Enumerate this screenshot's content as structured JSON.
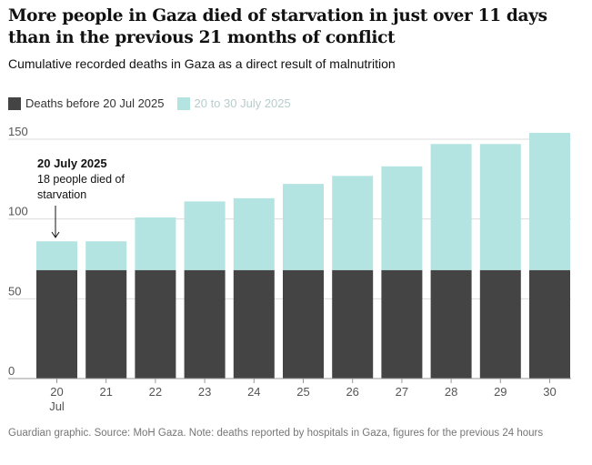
{
  "header": {
    "title": "More people in Gaza died of starvation in just over 11 days than in the previous 21 months of conflict",
    "subtitle": "Cumulative recorded deaths in Gaza as a direct result of malnutrition"
  },
  "legend": {
    "before_label": "Deaths before 20 Jul 2025",
    "recent_label": "20 to 30 July 2025"
  },
  "colors": {
    "before": "#444444",
    "recent": "#b3e4e1",
    "grid": "#dcdcdc",
    "axis": "#999999"
  },
  "annotation": {
    "date": "20 July 2025",
    "line1": "18 people died of",
    "line2": "starvation"
  },
  "chart_data": {
    "type": "bar",
    "stacked": true,
    "categories": [
      "20",
      "21",
      "22",
      "23",
      "24",
      "25",
      "26",
      "27",
      "28",
      "29",
      "30"
    ],
    "first_category_sublabel": "Jul",
    "series": [
      {
        "name": "Deaths before 20 Jul 2025",
        "values": [
          68,
          68,
          68,
          68,
          68,
          68,
          68,
          68,
          68,
          68,
          68
        ]
      },
      {
        "name": "20 to 30 July 2025",
        "values": [
          18,
          18,
          33,
          43,
          45,
          54,
          59,
          65,
          79,
          79,
          86
        ]
      }
    ],
    "yticks": [
      0,
      50,
      100,
      150
    ],
    "ylim": [
      0,
      150
    ],
    "title": "Cumulative recorded deaths in Gaza as a direct result of malnutrition"
  },
  "footer": "Guardian graphic. Source: MoH Gaza. Note: deaths reported by hospitals in Gaza, figures for the previous 24 hours"
}
